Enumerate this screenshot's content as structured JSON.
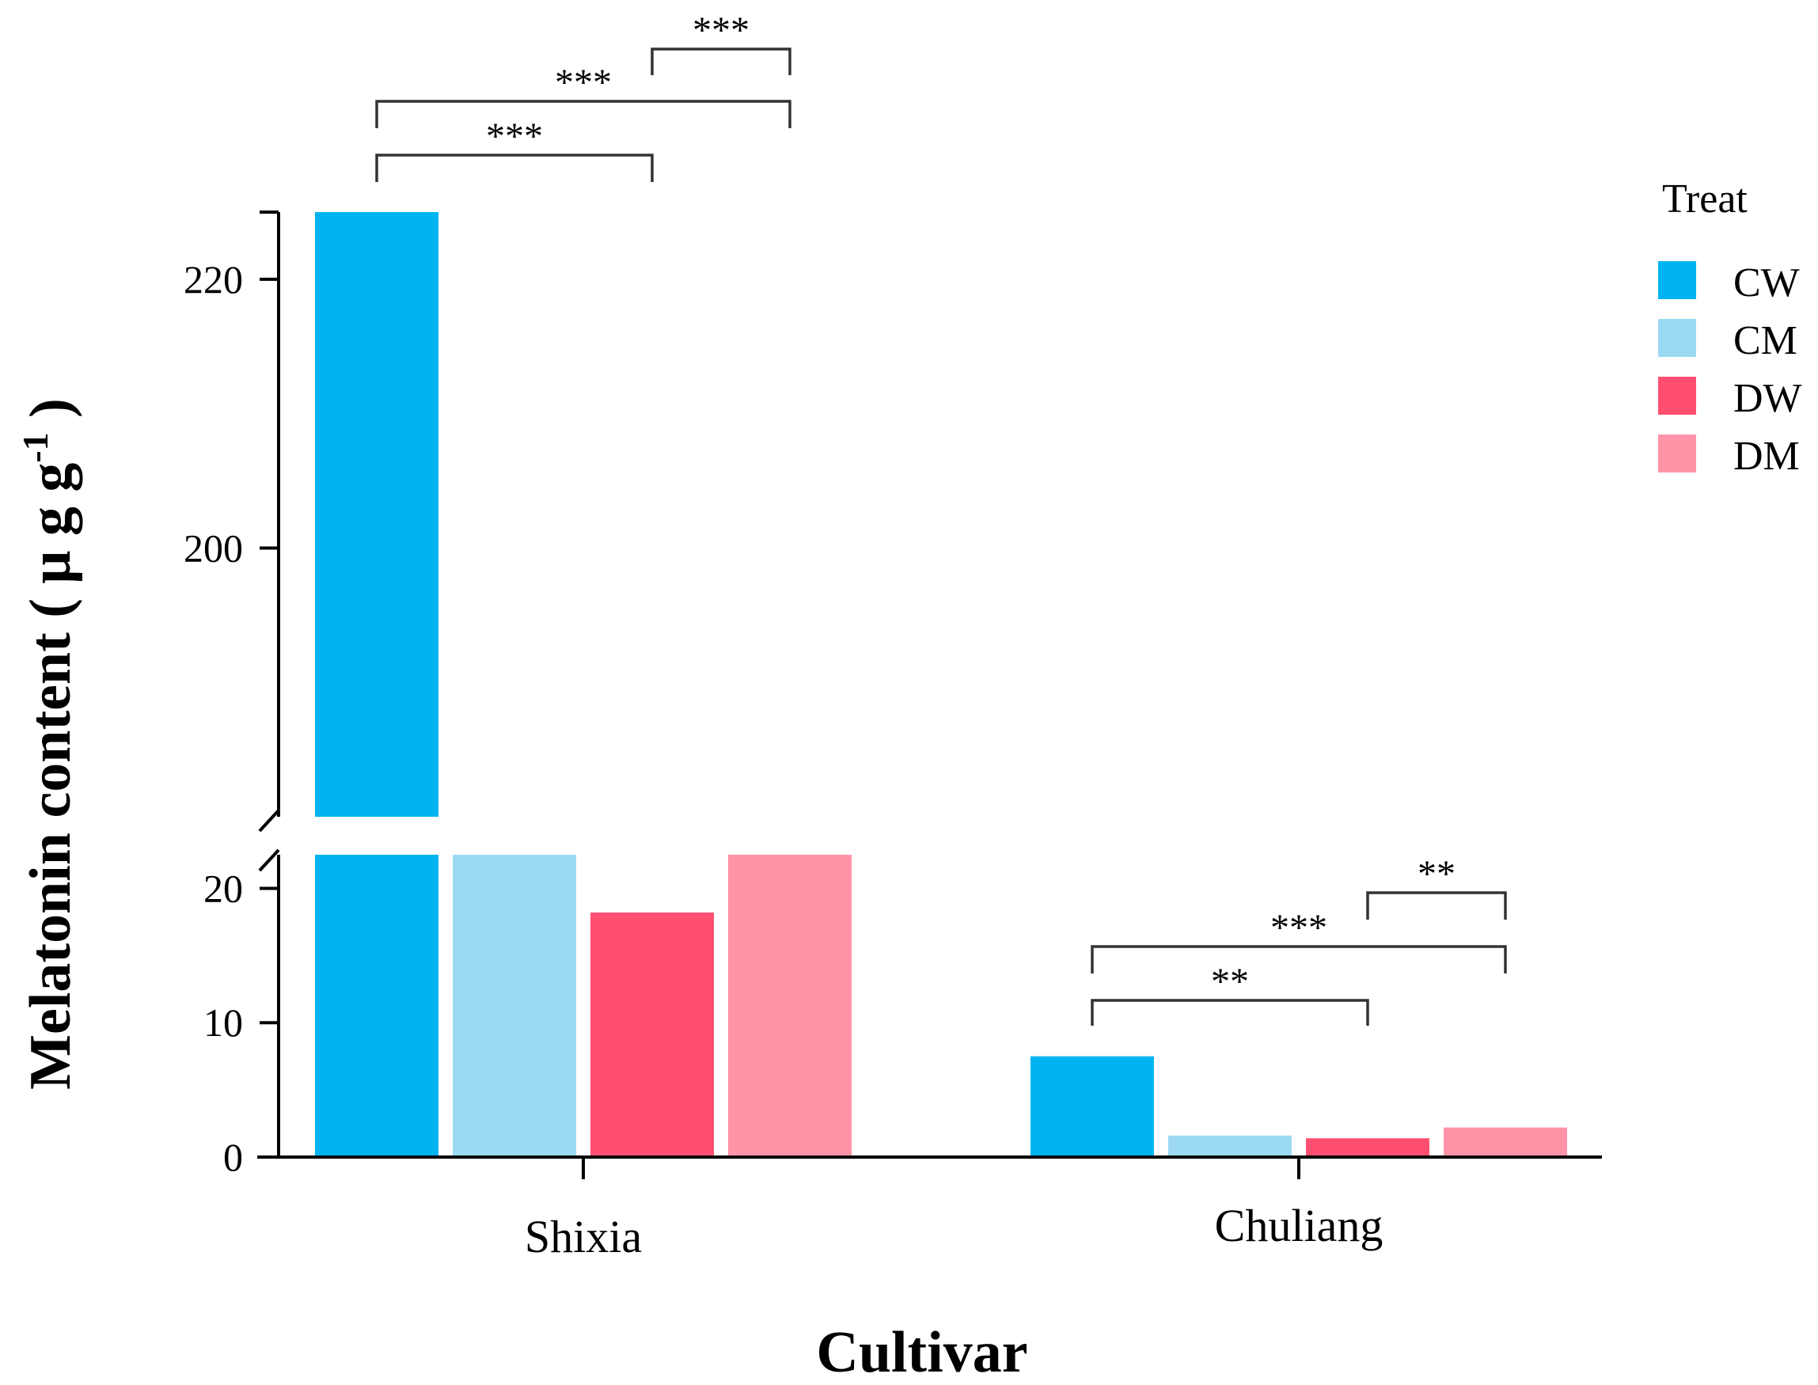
{
  "chart_data": {
    "type": "bar",
    "title": "",
    "xlabel": "Cultivar",
    "ylabel": "Melatonin content ( μ g g",
    "ylabel_superscript": "-1",
    "ylabel_close": " )",
    "categories": [
      "Shixia",
      "Chuliang"
    ],
    "legend_title": "Treat",
    "legend_position": "right",
    "series": [
      {
        "name": "CW",
        "color": "#00B4F1",
        "values": [
          225,
          7.5
        ]
      },
      {
        "name": "CM",
        "color": "#9CDAF3",
        "values": [
          22.5,
          1.6
        ]
      },
      {
        "name": "DW",
        "color": "#FF4F71",
        "values": [
          18.2,
          1.4
        ]
      },
      {
        "name": "DM",
        "color": "#FF94A9",
        "values": [
          22.5,
          2.2
        ]
      }
    ],
    "axis_break": {
      "lower_range": [
        0,
        22.5
      ],
      "upper_range": [
        180,
        225
      ],
      "lower_ticks": [
        "0",
        "10",
        "20"
      ],
      "upper_ticks": [
        "200",
        "220"
      ]
    },
    "significance": [
      {
        "category": "Shixia",
        "from": "DW",
        "to": "DM",
        "label": "***"
      },
      {
        "category": "Shixia",
        "from": "CW",
        "to": "DM",
        "label": "***"
      },
      {
        "category": "Shixia",
        "from": "CW",
        "to": "DW",
        "label": "***"
      },
      {
        "category": "Chuliang",
        "from": "DW",
        "to": "DM",
        "label": "**"
      },
      {
        "category": "Chuliang",
        "from": "CW",
        "to": "DM",
        "label": "***"
      },
      {
        "category": "Chuliang",
        "from": "CW",
        "to": "DW",
        "label": "**"
      }
    ]
  }
}
